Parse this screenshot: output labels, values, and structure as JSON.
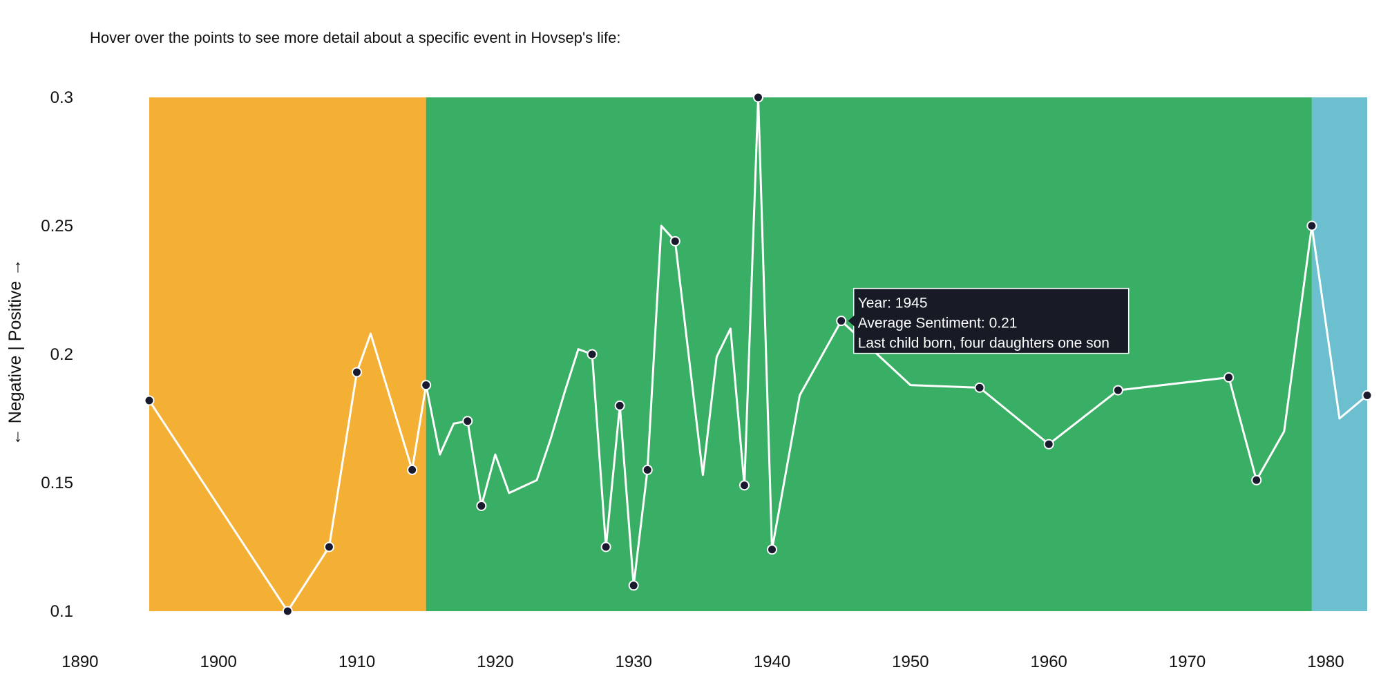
{
  "intro_text": "Hover over the points to see more detail about a specific event in Hovsep's life:",
  "chart_data": {
    "type": "line",
    "ylabel": "← Negative | Positive →",
    "xlim": [
      1890,
      1983
    ],
    "ylim": [
      0.1,
      0.3
    ],
    "x_ticks": [
      "1890",
      "1900",
      "1910",
      "1920",
      "1930",
      "1940",
      "1950",
      "1960",
      "1970",
      "1980"
    ],
    "y_ticks": [
      "0.1",
      "0.15",
      "0.2",
      "0.25",
      "0.3"
    ],
    "grid": false,
    "bands": [
      {
        "start": 1895,
        "end": 1915,
        "color": "#f3b034"
      },
      {
        "start": 1915,
        "end": 1979,
        "color": "#39ae65"
      },
      {
        "start": 1979,
        "end": 1983,
        "color": "#6bbfcf"
      }
    ],
    "line_color": "#ffffff",
    "marker_color": "#1a1a2e",
    "series": [
      {
        "x": [
          1895,
          1905,
          1908,
          1910,
          1911,
          1914,
          1915,
          1916,
          1917,
          1918,
          1919,
          1920,
          1921,
          1923,
          1924,
          1925,
          1926,
          1927,
          1928,
          1929,
          1930,
          1931,
          1932,
          1933,
          1935,
          1936,
          1937,
          1938,
          1939,
          1940,
          1942,
          1945,
          1950,
          1955,
          1960,
          1965,
          1973,
          1975,
          1977,
          1979,
          1981,
          1983
        ],
        "y": [
          0.182,
          0.1,
          0.125,
          0.193,
          0.208,
          0.155,
          0.188,
          0.161,
          0.173,
          0.174,
          0.141,
          0.161,
          0.146,
          0.151,
          0.167,
          0.185,
          0.202,
          0.2,
          0.125,
          0.18,
          0.11,
          0.155,
          0.25,
          0.244,
          0.153,
          0.199,
          0.21,
          0.149,
          0.3,
          0.124,
          0.184,
          0.213,
          0.188,
          0.187,
          0.165,
          0.186,
          0.191,
          0.151,
          0.17,
          0.25,
          0.175,
          0.184
        ],
        "markers": [
          1895,
          1905,
          1908,
          1910,
          1914,
          1915,
          1918,
          1919,
          1927,
          1928,
          1929,
          1930,
          1931,
          1933,
          1938,
          1939,
          1940,
          1945,
          1955,
          1960,
          1965,
          1973,
          1975,
          1979,
          1983
        ]
      }
    ],
    "tooltip": {
      "year": 1945,
      "lines": [
        "Year: 1945",
        "Average Sentiment: 0.21",
        "Last child born, four daughters one son"
      ]
    }
  }
}
